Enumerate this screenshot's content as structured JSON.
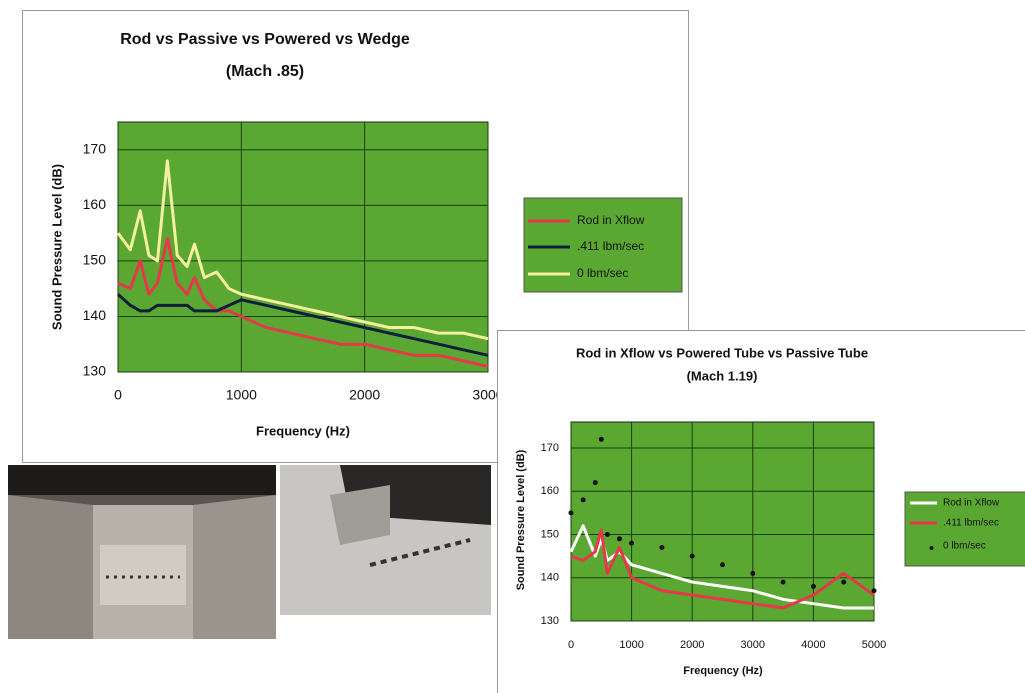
{
  "chart_data": [
    {
      "type": "line",
      "title": "Rod vs Passive vs Powered vs Wedge",
      "subtitle": "(Mach .85)",
      "x_label": "Frequency (Hz)",
      "y_label": "Sound Pressure Level (dB)",
      "x": [
        0,
        100,
        180,
        250,
        320,
        400,
        480,
        560,
        620,
        700,
        800,
        900,
        1000,
        1200,
        1400,
        1600,
        1800,
        2000,
        2200,
        2400,
        2600,
        2800,
        3000
      ],
      "series": [
        {
          "name": "Rod in Xflow",
          "color": "#e8364a",
          "values": [
            146,
            145,
            150,
            144,
            146,
            154,
            146,
            144,
            147,
            143,
            141,
            141,
            140,
            138,
            137,
            136,
            135,
            135,
            134,
            133,
            133,
            132,
            131
          ]
        },
        {
          "name": ".411 lbm/sec",
          "color": "#0d1f3c",
          "values": [
            144,
            142,
            141,
            141,
            142,
            142,
            142,
            142,
            141,
            141,
            141,
            142,
            143,
            142,
            141,
            140,
            139,
            138,
            137,
            136,
            135,
            134,
            133
          ]
        },
        {
          "name": "0 lbm/sec",
          "color": "#f4f0a0",
          "values": [
            155,
            152,
            159,
            151,
            150,
            168,
            151,
            149,
            153,
            147,
            148,
            145,
            144,
            143,
            142,
            141,
            140,
            139,
            138,
            138,
            137,
            137,
            136
          ]
        }
      ],
      "xlim": [
        0,
        3000
      ],
      "xticks": [
        0,
        1000,
        2000,
        3000
      ],
      "ylim": [
        130,
        175
      ],
      "yticks": [
        130,
        140,
        150,
        160,
        170
      ],
      "grid": true
    },
    {
      "type": "line",
      "title": "Rod in Xflow vs Powered Tube vs Passive Tube",
      "subtitle": "(Mach 1.19)",
      "x_label": "Frequency (Hz)",
      "y_label": "Sound Pressure Level (dB)",
      "x": [
        0,
        200,
        400,
        500,
        600,
        800,
        1000,
        1500,
        2000,
        2500,
        3000,
        3500,
        4000,
        4500,
        5000
      ],
      "series": [
        {
          "name": "Rod in Xflow",
          "color": "#ffffff",
          "values": [
            146,
            152,
            145,
            149,
            144,
            146,
            143,
            141,
            139,
            138,
            137,
            135,
            134,
            133,
            133
          ]
        },
        {
          "name": ".411 lbm/sec",
          "color": "#e8364a",
          "values": [
            145,
            144,
            146,
            151,
            141,
            147,
            140,
            137,
            136,
            135,
            134,
            133,
            136,
            141,
            136
          ]
        },
        {
          "name": "0 lbm/sec",
          "color": "#111111",
          "marker": "dot",
          "values": [
            155,
            158,
            162,
            172,
            150,
            149,
            148,
            147,
            145,
            143,
            141,
            139,
            138,
            139,
            137
          ]
        }
      ],
      "xlim": [
        0,
        5000
      ],
      "xticks": [
        0,
        1000,
        2000,
        3000,
        4000,
        5000
      ],
      "ylim": [
        130,
        176
      ],
      "yticks": [
        130,
        140,
        150,
        160,
        170
      ],
      "grid": true
    }
  ]
}
